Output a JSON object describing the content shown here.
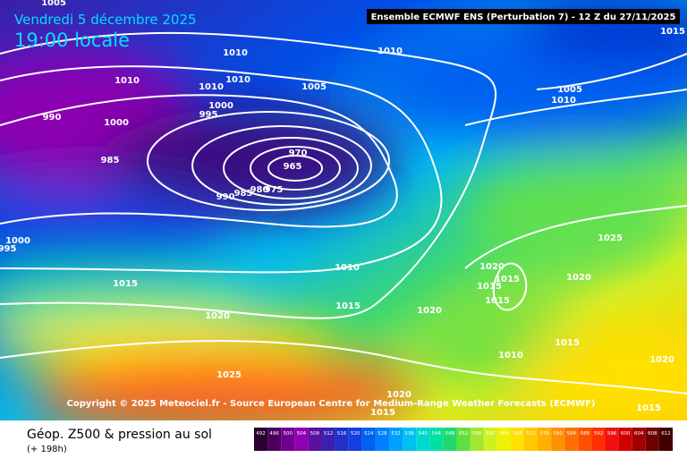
{
  "header": {
    "date": "Vendredi 5 décembre 2025",
    "time": "19:00 locale",
    "model": "Ensemble ECMWF ENS  (Perturbation 7)  -  12 Z du 27/11/2025"
  },
  "isobar_labels": [
    1015,
    1010,
    1010,
    1010,
    1005,
    1005,
    1010,
    1000,
    995,
    990,
    1000,
    970,
    965,
    985,
    990,
    985,
    980,
    975,
    1000,
    995,
    1010,
    1025,
    1020,
    1015,
    1015,
    1020,
    1015,
    1015,
    1020,
    1015,
    1020,
    1015,
    1010,
    1020,
    1025,
    1020,
    1015,
    1015,
    1010,
    1010,
    1005
  ],
  "copyright": "Copyright © 2025 Meteociel.fr - Source European Centre for Medium-Range Weather Forecasts (ECMWF)",
  "footer": {
    "title": "Géop. Z500 & pression au sol",
    "lead": "(+ 198h)"
  },
  "legend": {
    "labels": [
      "492",
      "496",
      "500",
      "504",
      "508",
      "512",
      "516",
      "520",
      "524",
      "528",
      "532",
      "536",
      "540",
      "544",
      "548",
      "552",
      "556",
      "560",
      "564",
      "568",
      "572",
      "576",
      "580",
      "584",
      "588",
      "592",
      "596",
      "600",
      "604",
      "608",
      "612"
    ],
    "colors": [
      "#2a0030",
      "#4a0060",
      "#700090",
      "#8e00b0",
      "#5a10a0",
      "#3820b0",
      "#2030c8",
      "#1040e0",
      "#0060f0",
      "#0080ff",
      "#00a0ff",
      "#00c0f0",
      "#00d8d0",
      "#00e0a0",
      "#20d870",
      "#60e040",
      "#a0e830",
      "#d0f020",
      "#f0f000",
      "#ffe000",
      "#ffc800",
      "#ffb000",
      "#ff9000",
      "#ff7000",
      "#ff5000",
      "#ff3000",
      "#f01010",
      "#d00000",
      "#a00000",
      "#700000",
      "#400000"
    ]
  }
}
